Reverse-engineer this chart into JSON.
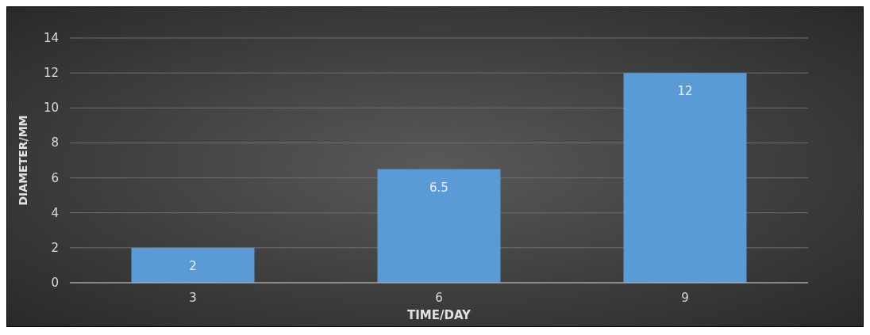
{
  "chart_data": {
    "type": "bar",
    "xlabel": "TIME/DAY",
    "ylabel": "DIAMETER/MM",
    "categories": [
      "3",
      "6",
      "9"
    ],
    "values": [
      2,
      6.5,
      12
    ],
    "color": "#5b9bd5",
    "ylim": [
      0,
      14
    ],
    "yticks": [
      0,
      2,
      4,
      6,
      8,
      10,
      12,
      14
    ],
    "grid": "y",
    "data_labels": true
  }
}
